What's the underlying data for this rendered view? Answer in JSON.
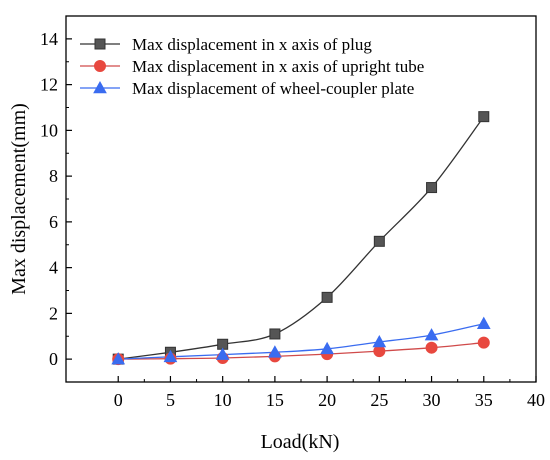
{
  "chart_data": {
    "type": "line",
    "title": "",
    "xlabel": "Load(kN)",
    "ylabel": "Max displacement(mm)",
    "xlim": [
      -5,
      40
    ],
    "ylim": [
      -1,
      15
    ],
    "xticks": [
      0,
      5,
      10,
      15,
      20,
      25,
      30,
      35,
      40
    ],
    "yticks": [
      0,
      2,
      4,
      6,
      8,
      10,
      12,
      14
    ],
    "grid": false,
    "legend_position": "top-left",
    "x": [
      0,
      5,
      10,
      15,
      20,
      25,
      30,
      35
    ],
    "series": [
      {
        "name": "Max displacement in x axis of plug",
        "marker": "square",
        "color": "#000000",
        "marker_color": "#555555",
        "line_color": "#333333",
        "values": [
          0.0,
          0.3,
          0.65,
          1.1,
          2.7,
          5.15,
          7.5,
          10.6
        ]
      },
      {
        "name": "Max displacement in x axis of upright tube",
        "marker": "circle",
        "color": "#e03b3b",
        "marker_color": "#e8483f",
        "line_color": "#d04a4a",
        "values": [
          0.0,
          0.02,
          0.05,
          0.12,
          0.22,
          0.35,
          0.5,
          0.72
        ]
      },
      {
        "name": "Max displacement of wheel-coupler plate",
        "marker": "triangle",
        "color": "#2f5fe8",
        "marker_color": "#3a6cf0",
        "line_color": "#3a6cf0",
        "values": [
          0.0,
          0.1,
          0.2,
          0.3,
          0.45,
          0.75,
          1.05,
          1.55
        ]
      }
    ]
  }
}
